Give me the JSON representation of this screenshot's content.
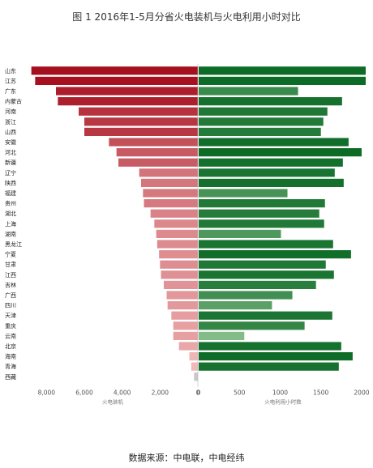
{
  "title": "图 1 2016年1-5月分省火电装机与火电利用小时对比",
  "source": "数据来源：中电联，中电经纬",
  "chart_data": {
    "type": "bar",
    "categories": [
      "山东",
      "江苏",
      "广东",
      "内蒙古",
      "河南",
      "浙江",
      "山西",
      "安徽",
      "河北",
      "新疆",
      "辽宁",
      "陕西",
      "福建",
      "贵州",
      "湖北",
      "上海",
      "湖南",
      "黑龙江",
      "宁夏",
      "甘肃",
      "江西",
      "吉林",
      "广西",
      "四川",
      "天津",
      "重庆",
      "云南",
      "北京",
      "海南",
      "青海",
      "西藏"
    ],
    "series": [
      {
        "values": [
          8800,
          8600,
          7500,
          7400,
          6300,
          6000,
          6000,
          4700,
          4300,
          4200,
          3100,
          3000,
          2900,
          2850,
          2500,
          2300,
          2200,
          2150,
          2050,
          2000,
          1950,
          1800,
          1650,
          1600,
          1400,
          1300,
          1300,
          1000,
          450,
          350,
          200
        ]
      },
      {
        "values": [
          2050,
          2050,
          1220,
          1760,
          1580,
          1530,
          1500,
          1840,
          2000,
          1770,
          1670,
          1780,
          1090,
          1550,
          1480,
          1540,
          1010,
          1650,
          1870,
          1560,
          1660,
          1440,
          1150,
          900,
          1640,
          1300,
          560,
          1750,
          1890,
          1720,
          0
        ]
      }
    ],
    "left_axis": {
      "label": "火电装机",
      "ticks": [
        "8,000",
        "6,000",
        "4,000",
        "2,000",
        "0"
      ],
      "range": [
        9000,
        0
      ]
    },
    "right_axis": {
      "label": "火电利用小时数",
      "ticks": [
        "0",
        "500",
        "1000",
        "1500",
        "2000"
      ],
      "range": [
        0,
        2090
      ]
    },
    "legend": "none",
    "grid": false,
    "colors": {
      "left_dark": "#a50f1e",
      "left_light": "#f3bcbc",
      "right_dark": "#0c6b26",
      "right_light": "#98c99a",
      "tiny_bar": "#c8c8c8",
      "axis_line": "#bbbbbb"
    }
  }
}
